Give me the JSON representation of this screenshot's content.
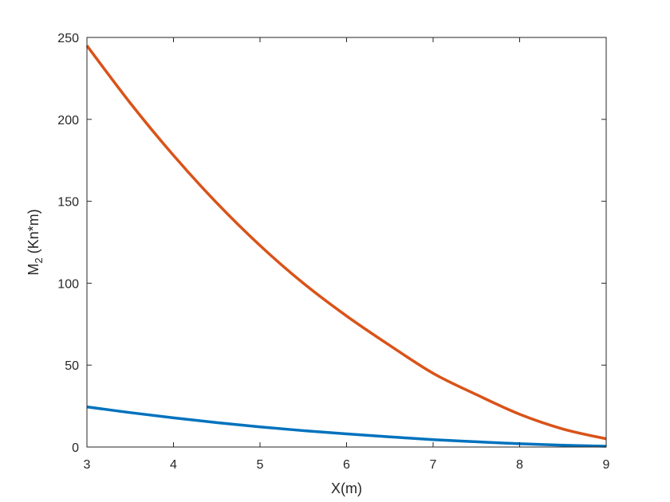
{
  "chart_data": {
    "type": "line",
    "xlabel": "X(m)",
    "ylabel": {
      "main": "M",
      "sub": "2",
      "rest": " (Kn*m)"
    },
    "xlim": [
      3,
      9
    ],
    "ylim": [
      0,
      250
    ],
    "xticks": [
      3,
      4,
      5,
      6,
      7,
      8,
      9
    ],
    "yticks": [
      0,
      50,
      100,
      150,
      200,
      250
    ],
    "grid": false,
    "box": true,
    "series": [
      {
        "color": "#D95319",
        "x": [
          3,
          3.5,
          4,
          4.5,
          5,
          5.5,
          6,
          6.5,
          7,
          7.5,
          8,
          8.5,
          9
        ],
        "y": [
          245,
          210,
          178,
          149,
          123,
          100,
          80,
          62,
          45,
          32,
          20,
          11,
          5
        ]
      },
      {
        "color": "#0072BD",
        "x": [
          3,
          3.5,
          4,
          4.5,
          5,
          5.5,
          6,
          6.5,
          7,
          7.5,
          8,
          8.5,
          9
        ],
        "y": [
          24.5,
          21,
          17.8,
          14.9,
          12.3,
          10,
          8,
          6.2,
          4.5,
          3.2,
          2,
          1.1,
          0.5
        ]
      }
    ]
  }
}
